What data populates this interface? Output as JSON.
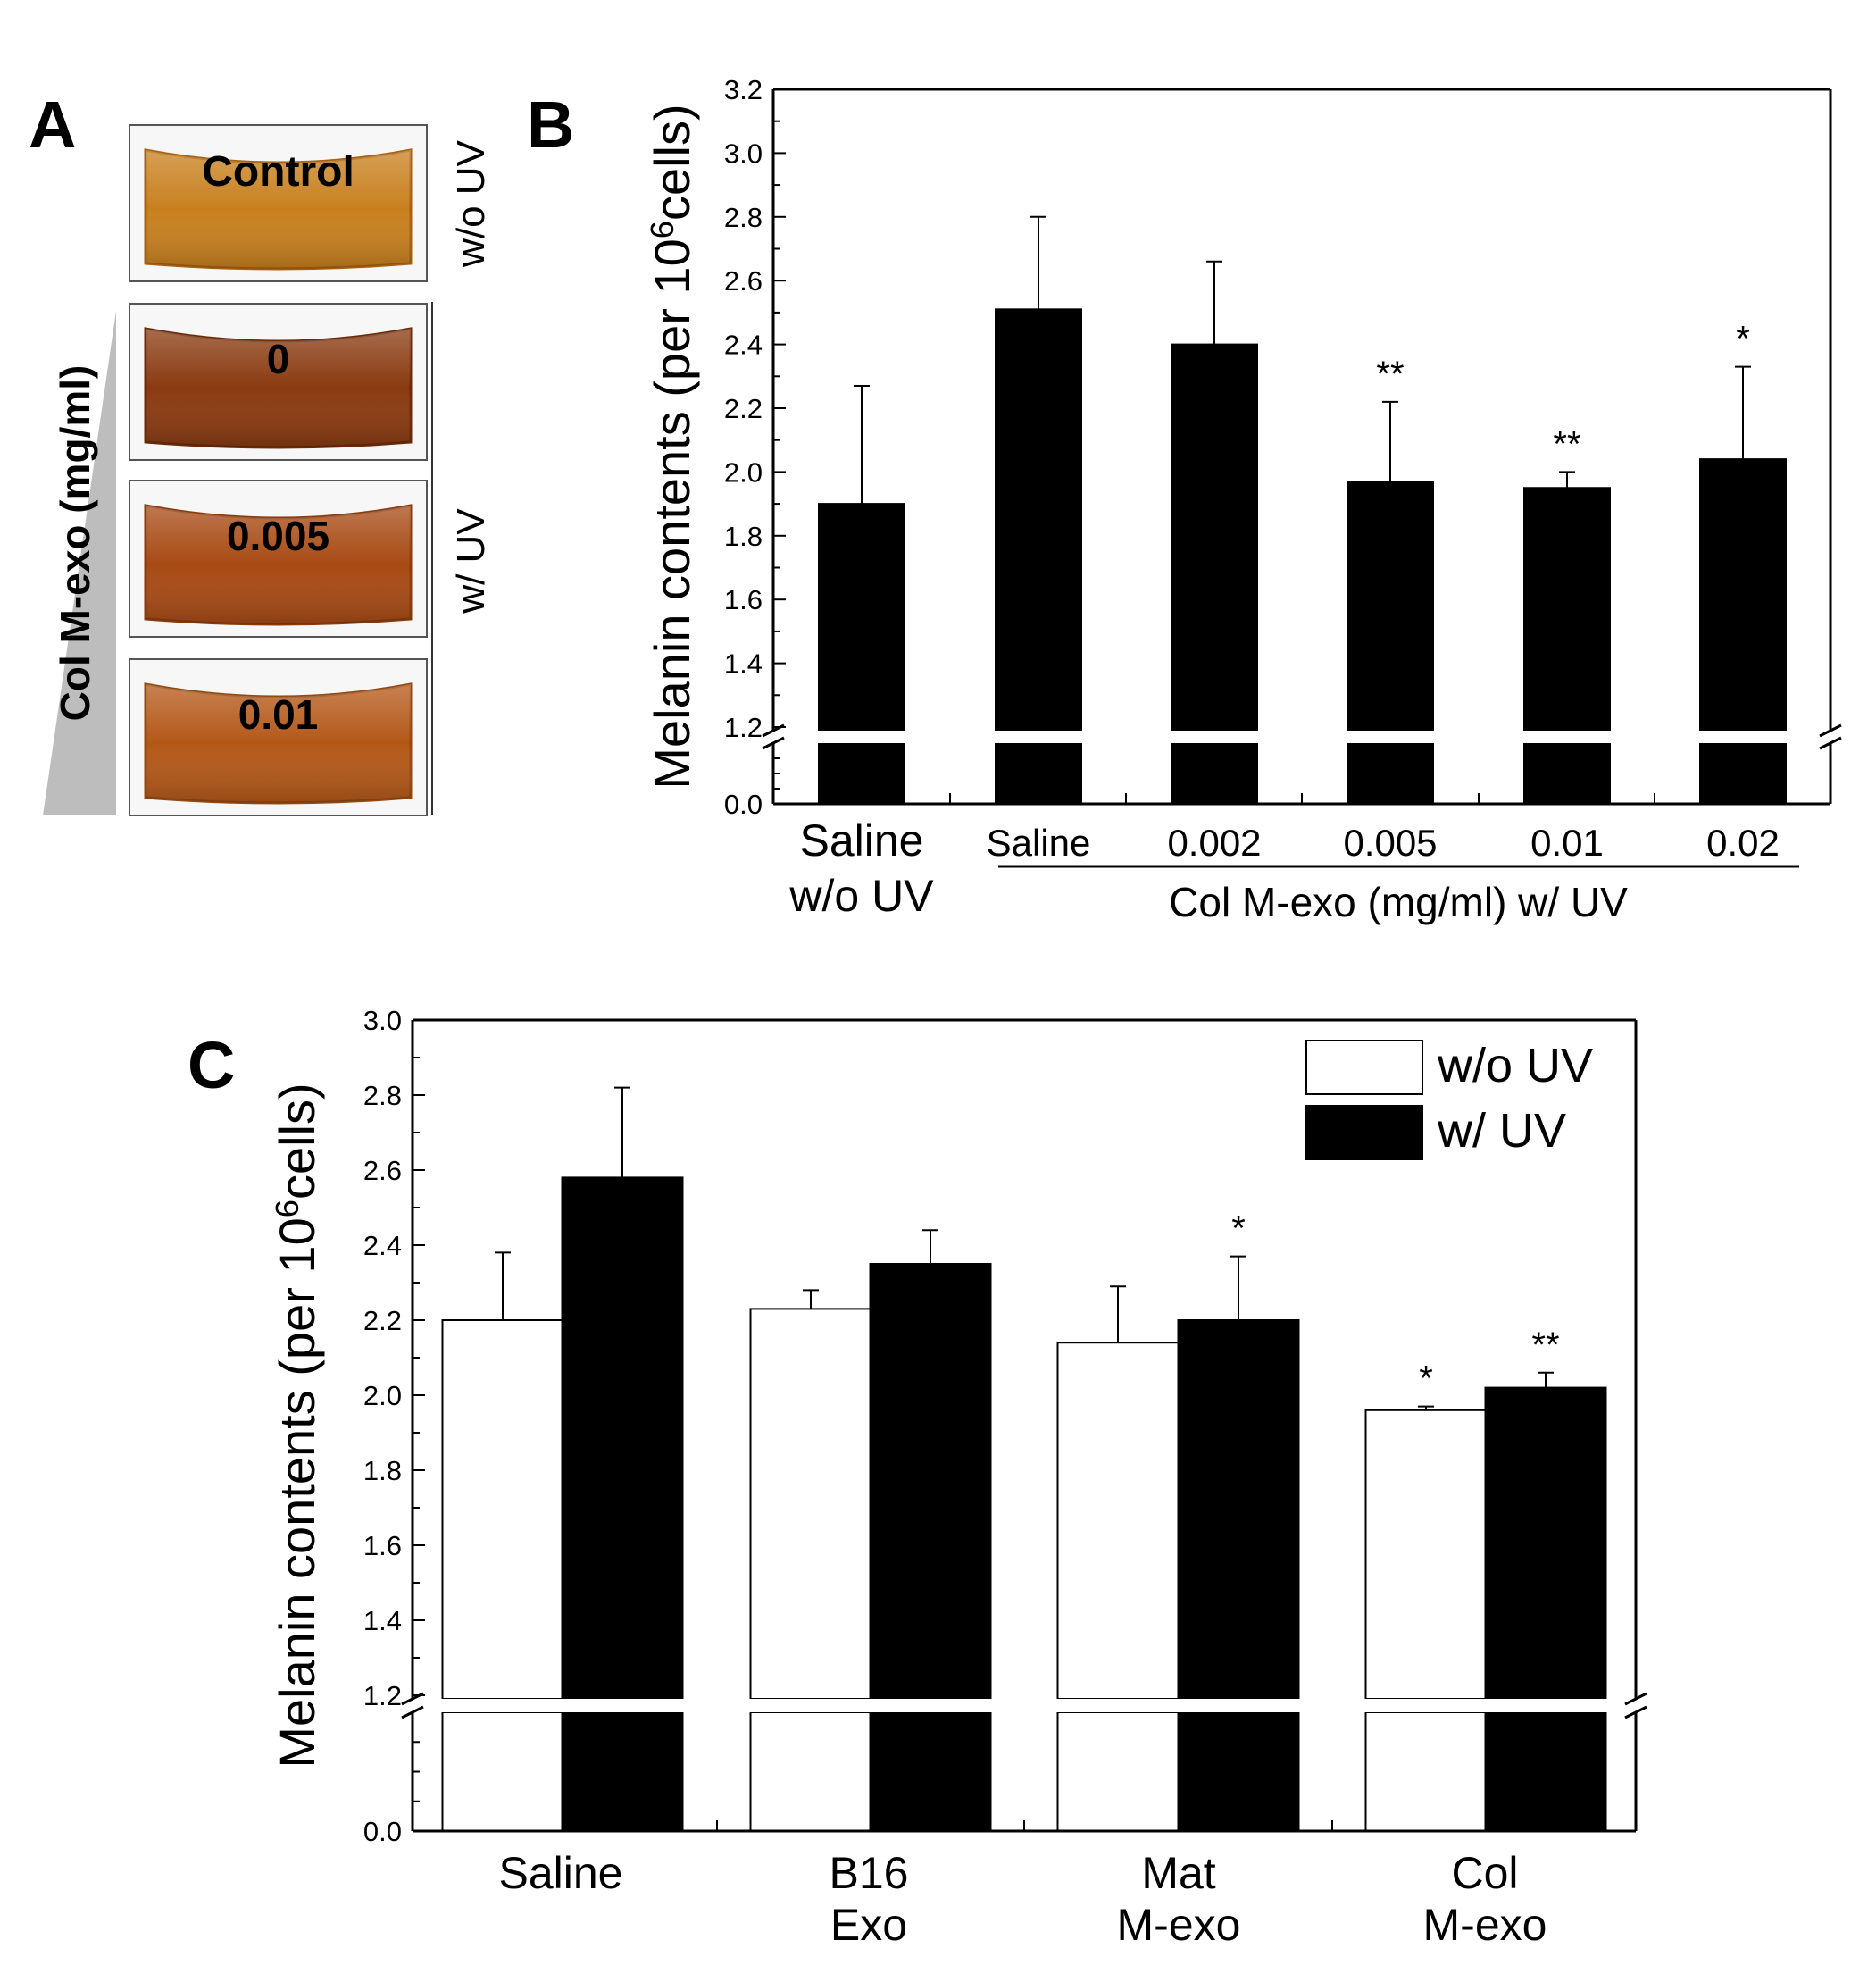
{
  "panel_a": {
    "letter": "A",
    "wells": [
      {
        "label": "Control",
        "color": "#c8801e",
        "edge": "#a8600e"
      },
      {
        "label": "0",
        "color": "#8a3a10",
        "edge": "#6a2a08"
      },
      {
        "label": "0.005",
        "color": "#a84a14",
        "edge": "#883a0c"
      },
      {
        "label": "0.01",
        "color": "#b45818",
        "edge": "#944810"
      }
    ],
    "side_top": "w/o UV",
    "side_bottom": "w/ UV",
    "concentration_label": "Col M-exo (mg/ml)"
  },
  "panel_b_letter": "B",
  "panel_c_letter": "C",
  "chart_data": [
    {
      "type": "bar",
      "panel": "B",
      "categories": [
        "Saline w/o UV",
        "Saline",
        "0.002",
        "0.005",
        "0.01",
        "0.02"
      ],
      "category_lines": [
        [
          "Saline",
          "w/o UV"
        ],
        [
          "Saline"
        ],
        [
          "0.002"
        ],
        [
          "0.005"
        ],
        [
          "0.01"
        ],
        [
          "0.02"
        ]
      ],
      "values": [
        1.9,
        2.51,
        2.4,
        1.97,
        1.95,
        2.04
      ],
      "errors": [
        0.37,
        0.29,
        0.26,
        0.25,
        0.05,
        0.29
      ],
      "significance": [
        "",
        "",
        "",
        "**",
        "**",
        "*"
      ],
      "ylabel": "Melanin contents (per 10",
      "ylabel_sup": "6",
      "ylabel_end": "cells)",
      "ylim_upper": [
        1.2,
        3.2
      ],
      "ylim_lower": [
        0.0,
        1.2
      ],
      "axis_break": true,
      "yticks": [
        "1.2",
        "1.4",
        "1.6",
        "1.8",
        "2.0",
        "2.2",
        "2.4",
        "2.6",
        "2.8",
        "3.0",
        "3.2"
      ],
      "ytick_lower": "0.0",
      "group_label": "Col M-exo (mg/ml) w/ UV",
      "bar_color": "#000000"
    },
    {
      "type": "bar",
      "panel": "C",
      "categories": [
        "Saline",
        "B16 Exo",
        "Mat M-exo",
        "Col M-exo"
      ],
      "category_lines": [
        [
          "Saline"
        ],
        [
          "B16",
          "Exo"
        ],
        [
          "Mat",
          "M-exo"
        ],
        [
          "Col",
          "M-exo"
        ]
      ],
      "series": [
        {
          "name": "w/o UV",
          "values": [
            2.2,
            2.23,
            2.14,
            1.96
          ],
          "errors": [
            0.18,
            0.05,
            0.15,
            0.01
          ],
          "significance": [
            "",
            "",
            "",
            "*"
          ],
          "color": "#ffffff"
        },
        {
          "name": "w/ UV",
          "values": [
            2.58,
            2.35,
            2.2,
            2.02
          ],
          "errors": [
            0.24,
            0.09,
            0.17,
            0.04
          ],
          "significance": [
            "",
            "",
            "*",
            "**"
          ],
          "color": "#000000"
        }
      ],
      "ylabel": "Melanin contents (per 10",
      "ylabel_sup": "6",
      "ylabel_end": "cells)",
      "ylim_upper": [
        1.2,
        3.0
      ],
      "ylim_lower": [
        0.0,
        1.2
      ],
      "axis_break": true,
      "yticks": [
        "1.2",
        "1.4",
        "1.6",
        "1.8",
        "2.0",
        "2.2",
        "2.4",
        "2.6",
        "2.8",
        "3.0"
      ],
      "ytick_lower": "0.0",
      "legend_placement": "top-right"
    }
  ]
}
